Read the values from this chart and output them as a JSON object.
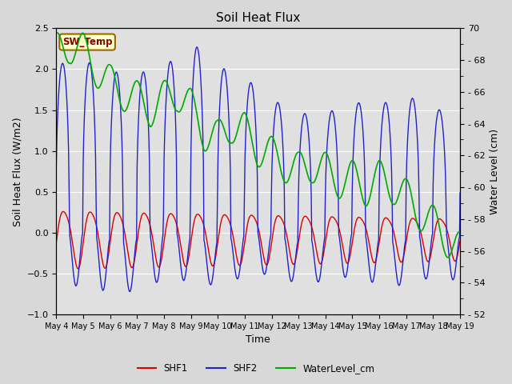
{
  "title": "Soil Heat Flux",
  "ylabel_left": "Soil Heat Flux (W/m2)",
  "ylabel_right": "Water Level (cm)",
  "xlabel": "Time",
  "ylim_left": [
    -1.0,
    2.5
  ],
  "ylim_right": [
    52,
    70
  ],
  "bg_color": "#e8e8e8",
  "fig_color": "#d8d8d8",
  "legend_label": "SW_Temp",
  "legend_box_facecolor": "#ffffcc",
  "legend_box_edgecolor": "#996600",
  "shf1_color": "#dd0000",
  "shf2_color": "#2222cc",
  "water_color": "#00aa00",
  "grid_color": "#ffffff",
  "num_points": 720,
  "days": 15
}
